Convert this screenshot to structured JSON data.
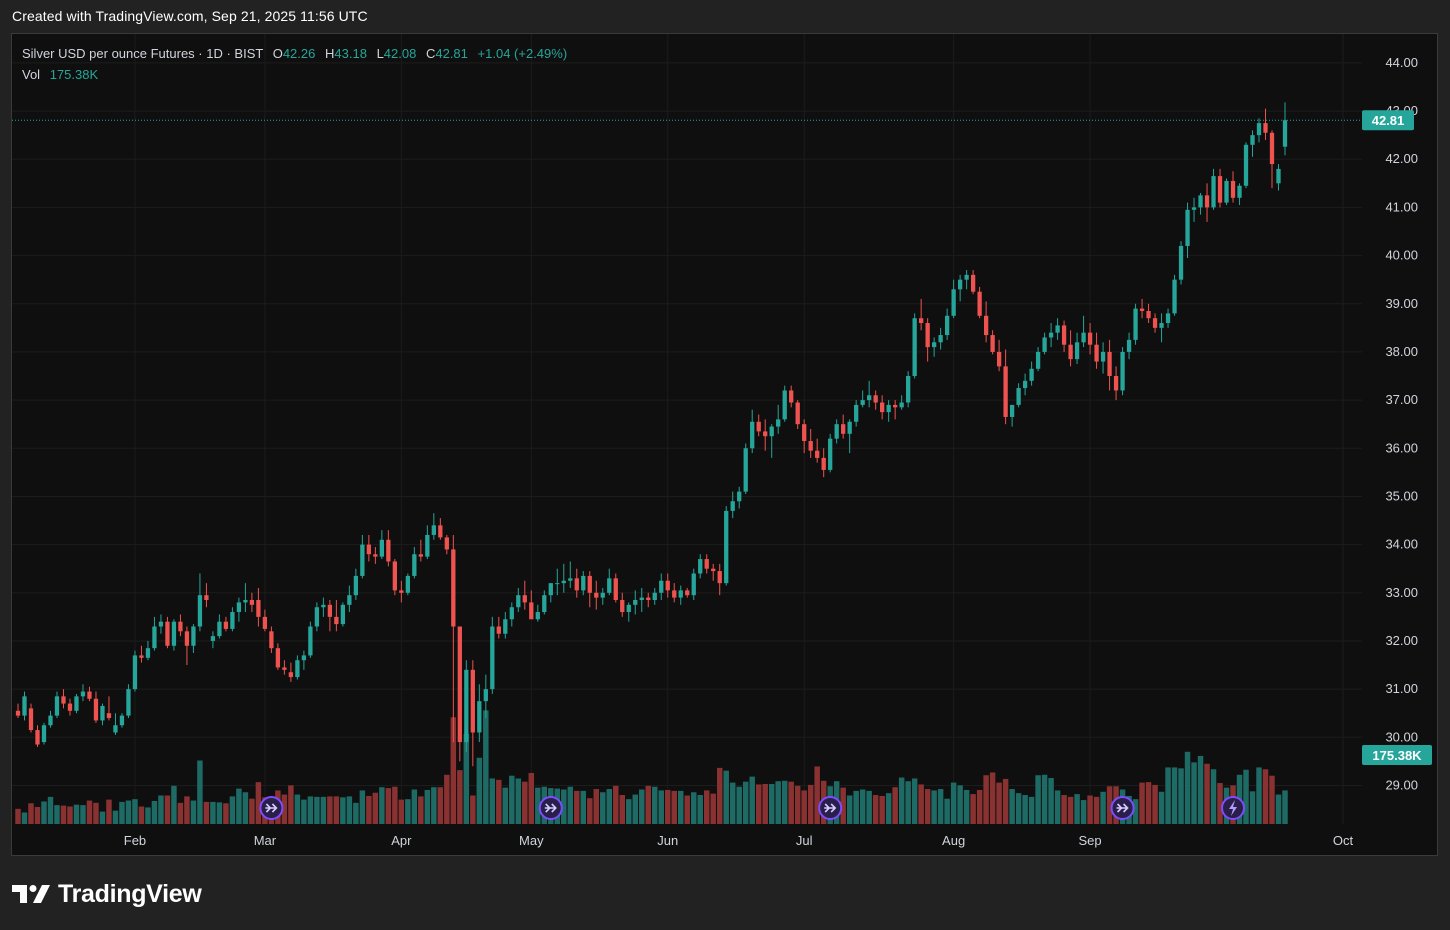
{
  "header": {
    "created_text": "Created with TradingView.com, Sep 21, 2025 11:56 UTC"
  },
  "legend": {
    "symbol": "Silver USD per ounce Futures · 1D · BIST",
    "open_label": "O",
    "open": "42.26",
    "high_label": "H",
    "high": "43.18",
    "low_label": "L",
    "low": "42.08",
    "close_label": "C",
    "close": "42.81",
    "change": "+1.04 (+2.49%)",
    "vol_label": "Vol",
    "vol": "175.38K"
  },
  "price_axis": {
    "ticks": [
      "44.00",
      "43.00",
      "42.00",
      "41.00",
      "40.00",
      "39.00",
      "38.00",
      "37.00",
      "36.00",
      "35.00",
      "34.00",
      "33.00",
      "32.00",
      "31.00",
      "30.00",
      "29.00"
    ],
    "last_price_label": "42.81",
    "last_volume_label": "175.38K"
  },
  "time_axis": {
    "ticks": [
      "Feb",
      "Mar",
      "Apr",
      "May",
      "Jun",
      "Jul",
      "Aug",
      "Sep",
      "Oct"
    ]
  },
  "brand": {
    "name": "TradingView"
  },
  "colors": {
    "up": "#26a69a",
    "down": "#ef5350",
    "vol_up": "#1e6b66",
    "vol_down": "#8a3232",
    "grid": "#1c1c1c",
    "background": "#0f0f0f",
    "marker": "#7c4dff"
  },
  "chart_data": {
    "type": "candlestick",
    "title": "Silver USD per ounce Futures · 1D · BIST",
    "ylim": [
      28.2,
      44.6
    ],
    "y_ticks": [
      29,
      30,
      31,
      32,
      33,
      34,
      35,
      36,
      37,
      38,
      39,
      40,
      41,
      42,
      43,
      44
    ],
    "x_ticks": [
      "Feb",
      "Mar",
      "Apr",
      "May",
      "Jun",
      "Jul",
      "Aug",
      "Sep",
      "Oct"
    ],
    "last_price": 42.81,
    "last_volume": "175.38K",
    "grid": true,
    "candles": [
      [
        30.55,
        30.7,
        30.4,
        30.45,
        "0.33"
      ],
      [
        30.45,
        30.95,
        30.35,
        30.85,
        "0.25"
      ],
      [
        30.6,
        30.7,
        30.1,
        30.15,
        "0.45"
      ],
      [
        30.15,
        30.25,
        29.8,
        29.85,
        "0.37"
      ],
      [
        29.9,
        30.3,
        29.85,
        30.25,
        "0.49"
      ],
      [
        30.25,
        30.55,
        30.2,
        30.45,
        "0.59"
      ],
      [
        30.45,
        30.95,
        30.4,
        30.85,
        "0.41"
      ],
      [
        30.85,
        31.0,
        30.6,
        30.7,
        "0.40"
      ],
      [
        30.7,
        30.8,
        30.45,
        30.55,
        "0.38"
      ],
      [
        30.55,
        30.9,
        30.5,
        30.85,
        "0.42"
      ],
      [
        30.85,
        31.1,
        30.75,
        30.95,
        "0.41"
      ],
      [
        30.95,
        31.05,
        30.75,
        30.8,
        "0.51"
      ],
      [
        30.8,
        30.95,
        30.3,
        30.35,
        "0.46"
      ],
      [
        30.35,
        30.7,
        30.25,
        30.65,
        "0.27"
      ],
      [
        30.5,
        30.85,
        30.35,
        30.4,
        "0.53"
      ],
      [
        30.1,
        30.5,
        30.05,
        30.25,
        "0.29"
      ],
      [
        30.25,
        30.5,
        30.2,
        30.45,
        "0.48"
      ],
      [
        30.45,
        31.1,
        30.4,
        31.0,
        "0.51"
      ],
      [
        31.0,
        31.8,
        30.95,
        31.7,
        "0.54"
      ],
      [
        31.7,
        31.9,
        31.55,
        31.65,
        "0.38"
      ],
      [
        31.65,
        32.0,
        31.6,
        31.85,
        "0.36"
      ],
      [
        31.85,
        32.5,
        31.8,
        32.3,
        "0.50"
      ],
      [
        32.3,
        32.55,
        32.15,
        32.4,
        "0.62"
      ],
      [
        32.4,
        32.5,
        31.85,
        31.9,
        "0.62"
      ],
      [
        31.9,
        32.45,
        31.8,
        32.4,
        "0.83"
      ],
      [
        32.4,
        32.55,
        32.1,
        32.2,
        "0.46"
      ],
      [
        32.2,
        32.3,
        31.5,
        31.9,
        "0.60"
      ],
      [
        31.9,
        32.35,
        31.75,
        32.3,
        "0.51"
      ],
      [
        32.3,
        33.4,
        32.2,
        32.95,
        "1.38"
      ],
      [
        32.95,
        33.2,
        32.7,
        32.85,
        "0.48"
      ],
      [
        32.0,
        32.2,
        31.85,
        32.1,
        "0.48"
      ],
      [
        32.1,
        32.55,
        32.05,
        32.4,
        "0.47"
      ],
      [
        32.4,
        32.5,
        32.2,
        32.25,
        "0.45"
      ],
      [
        32.25,
        32.7,
        32.2,
        32.6,
        "0.60"
      ],
      [
        32.6,
        32.9,
        32.4,
        32.8,
        "0.77"
      ],
      [
        32.8,
        33.2,
        32.6,
        32.85,
        "0.69"
      ],
      [
        32.85,
        33.0,
        32.6,
        32.75,
        "0.55"
      ],
      [
        32.85,
        33.1,
        32.3,
        32.5,
        "0.91"
      ],
      [
        32.5,
        32.65,
        32.2,
        32.25,
        "0.58"
      ],
      [
        32.2,
        32.3,
        31.75,
        31.85,
        "0.58"
      ],
      [
        31.85,
        31.95,
        31.4,
        31.45,
        "0.73"
      ],
      [
        31.45,
        31.6,
        31.3,
        31.4,
        "0.64"
      ],
      [
        31.35,
        31.55,
        31.15,
        31.25,
        "0.84"
      ],
      [
        31.25,
        31.7,
        31.2,
        31.6,
        "0.64"
      ],
      [
        31.6,
        31.8,
        31.4,
        31.7,
        "0.53"
      ],
      [
        31.7,
        32.4,
        31.65,
        32.3,
        "0.60"
      ],
      [
        32.3,
        32.8,
        32.2,
        32.7,
        "0.59"
      ],
      [
        32.7,
        32.9,
        32.5,
        32.75,
        "0.59"
      ],
      [
        32.75,
        32.85,
        32.2,
        32.5,
        "0.60"
      ],
      [
        32.5,
        32.85,
        32.2,
        32.35,
        "0.60"
      ],
      [
        32.35,
        32.8,
        32.3,
        32.75,
        "0.58"
      ],
      [
        32.75,
        33.15,
        32.6,
        32.95,
        "0.60"
      ],
      [
        32.95,
        33.5,
        32.85,
        33.35,
        "0.46"
      ],
      [
        33.35,
        34.2,
        33.3,
        34.0,
        "0.73"
      ],
      [
        34.0,
        34.2,
        33.65,
        33.8,
        "0.61"
      ],
      [
        33.8,
        33.95,
        33.6,
        33.75,
        "0.68"
      ],
      [
        33.75,
        34.3,
        33.7,
        34.1,
        "0.80"
      ],
      [
        34.1,
        34.3,
        33.55,
        33.65,
        "0.78"
      ],
      [
        33.65,
        33.7,
        32.95,
        33.05,
        "0.81"
      ],
      [
        33.05,
        33.25,
        32.8,
        33.0,
        "0.53"
      ],
      [
        33.0,
        33.4,
        32.95,
        33.35,
        "0.54"
      ],
      [
        33.35,
        33.95,
        33.3,
        33.8,
        "0.75"
      ],
      [
        33.8,
        34.1,
        33.65,
        33.75,
        "0.60"
      ],
      [
        33.75,
        34.4,
        33.7,
        34.2,
        "0.74"
      ],
      [
        34.2,
        34.65,
        34.1,
        34.4,
        "0.80"
      ],
      [
        34.4,
        34.55,
        34.1,
        34.15,
        "0.80"
      ],
      [
        34.15,
        34.2,
        33.8,
        33.9,
        "1.07"
      ],
      [
        33.9,
        34.2,
        29.9,
        32.3,
        "2.32"
      ],
      [
        32.3,
        32.3,
        29.5,
        29.9,
        "1.17"
      ],
      [
        29.9,
        31.6,
        29.7,
        31.4,
        "1.96"
      ],
      [
        31.4,
        31.6,
        29.4,
        30.1,
        "0.62"
      ],
      [
        30.1,
        31.1,
        29.9,
        30.75,
        "1.44"
      ],
      [
        30.75,
        31.3,
        30.4,
        31.0,
        "2.47"
      ],
      [
        31.0,
        32.5,
        30.9,
        32.3,
        "0.99"
      ],
      [
        32.3,
        32.5,
        32.05,
        32.15,
        "0.96"
      ],
      [
        32.15,
        32.6,
        32.05,
        32.45,
        "0.79"
      ],
      [
        32.45,
        32.8,
        32.3,
        32.7,
        "1.05"
      ],
      [
        32.7,
        33.1,
        32.6,
        32.95,
        "0.99"
      ],
      [
        32.95,
        33.25,
        32.65,
        32.8,
        "0.92"
      ],
      [
        32.8,
        33.05,
        32.55,
        32.45,
        "1.11"
      ],
      [
        32.45,
        32.75,
        32.4,
        32.6,
        "0.79"
      ],
      [
        32.6,
        33.05,
        32.55,
        32.95,
        "0.81"
      ],
      [
        32.95,
        33.2,
        32.8,
        33.2,
        "0.78"
      ],
      [
        33.2,
        33.5,
        32.95,
        33.2,
        "0.77"
      ],
      [
        33.2,
        33.6,
        33.0,
        33.25,
        "0.75"
      ],
      [
        33.25,
        33.65,
        33.1,
        33.3,
        "0.81"
      ],
      [
        33.3,
        33.5,
        32.9,
        33.05,
        "0.72"
      ],
      [
        33.05,
        33.45,
        32.95,
        33.35,
        "0.72"
      ],
      [
        33.35,
        33.45,
        32.7,
        33.0,
        "0.56"
      ],
      [
        33.0,
        33.25,
        32.65,
        32.9,
        "0.76"
      ],
      [
        32.9,
        33.1,
        32.75,
        33.0,
        "0.69"
      ],
      [
        33.0,
        33.5,
        32.95,
        33.3,
        "0.76"
      ],
      [
        33.3,
        33.4,
        32.8,
        32.85,
        "0.83"
      ],
      [
        32.85,
        33.0,
        32.5,
        32.6,
        "0.63"
      ],
      [
        32.6,
        32.8,
        32.4,
        32.75,
        "0.54"
      ],
      [
        32.75,
        33.05,
        32.55,
        32.85,
        "0.64"
      ],
      [
        32.85,
        33.1,
        32.6,
        32.9,
        "0.75"
      ],
      [
        32.9,
        33.0,
        32.7,
        32.85,
        "0.83"
      ],
      [
        32.85,
        33.1,
        32.75,
        33.0,
        "0.81"
      ],
      [
        33.0,
        33.4,
        32.85,
        33.25,
        "0.73"
      ],
      [
        33.25,
        33.4,
        32.9,
        33.05,
        "0.74"
      ],
      [
        33.05,
        33.2,
        32.8,
        32.9,
        "0.72"
      ],
      [
        32.9,
        33.15,
        32.75,
        33.05,
        "0.72"
      ],
      [
        33.05,
        33.1,
        32.9,
        32.95,
        "0.62"
      ],
      [
        32.95,
        33.5,
        32.85,
        33.4,
        "0.69"
      ],
      [
        33.4,
        33.8,
        33.3,
        33.7,
        "0.63"
      ],
      [
        33.7,
        33.8,
        33.4,
        33.5,
        "0.73"
      ],
      [
        33.5,
        33.6,
        33.25,
        33.45,
        "0.66"
      ],
      [
        33.45,
        33.6,
        32.95,
        33.2,
        "1.22"
      ],
      [
        33.2,
        34.8,
        33.15,
        34.7,
        "1.16"
      ],
      [
        34.7,
        35.1,
        34.55,
        34.9,
        "0.90"
      ],
      [
        34.9,
        35.2,
        34.75,
        35.1,
        "0.81"
      ],
      [
        35.1,
        36.1,
        35.05,
        36.0,
        "0.92"
      ],
      [
        36.0,
        36.8,
        35.9,
        36.55,
        "1.03"
      ],
      [
        36.55,
        36.7,
        36.25,
        36.35,
        "0.86"
      ],
      [
        36.35,
        36.6,
        35.95,
        36.25,
        "0.87"
      ],
      [
        36.25,
        36.5,
        35.8,
        36.45,
        "0.87"
      ],
      [
        36.45,
        36.9,
        36.3,
        36.6,
        "0.93"
      ],
      [
        36.6,
        37.3,
        36.55,
        37.2,
        "0.94"
      ],
      [
        37.2,
        37.3,
        36.85,
        36.95,
        "0.92"
      ],
      [
        36.95,
        37.0,
        36.4,
        36.5,
        "0.83"
      ],
      [
        36.5,
        36.6,
        35.9,
        36.15,
        "0.73"
      ],
      [
        36.15,
        36.4,
        35.8,
        35.95,
        "0.85"
      ],
      [
        35.95,
        36.2,
        35.7,
        35.8,
        "1.25"
      ],
      [
        35.8,
        36.0,
        35.4,
        35.55,
        "0.94"
      ],
      [
        35.55,
        36.3,
        35.5,
        36.2,
        "0.82"
      ],
      [
        36.2,
        36.6,
        36.1,
        36.5,
        "0.93"
      ],
      [
        36.5,
        36.7,
        36.2,
        36.3,
        "0.79"
      ],
      [
        36.3,
        36.6,
        35.9,
        36.55,
        "0.62"
      ],
      [
        36.55,
        37.0,
        36.45,
        36.9,
        "0.72"
      ],
      [
        36.9,
        37.2,
        36.85,
        37.0,
        "0.75"
      ],
      [
        37.0,
        37.4,
        36.85,
        37.1,
        "0.72"
      ],
      [
        37.1,
        37.2,
        36.8,
        36.95,
        "0.63"
      ],
      [
        36.95,
        37.1,
        36.6,
        36.75,
        "0.61"
      ],
      [
        36.75,
        37.0,
        36.55,
        36.9,
        "0.67"
      ],
      [
        36.9,
        37.0,
        36.6,
        36.85,
        "0.80"
      ],
      [
        36.85,
        37.1,
        36.8,
        36.95,
        "1.01"
      ],
      [
        36.95,
        37.6,
        36.85,
        37.5,
        "0.93"
      ],
      [
        37.5,
        38.8,
        37.45,
        38.7,
        "0.99"
      ],
      [
        38.7,
        39.1,
        38.45,
        38.6,
        "0.86"
      ],
      [
        38.6,
        38.7,
        37.8,
        38.1,
        "0.76"
      ],
      [
        38.1,
        38.3,
        37.9,
        38.2,
        "0.73"
      ],
      [
        38.2,
        38.5,
        38.05,
        38.35,
        "0.76"
      ],
      [
        38.35,
        38.9,
        38.25,
        38.75,
        "0.55"
      ],
      [
        38.75,
        39.5,
        38.7,
        39.3,
        "0.90"
      ],
      [
        39.3,
        39.6,
        39.05,
        39.5,
        "0.84"
      ],
      [
        39.5,
        39.7,
        39.3,
        39.6,
        "0.74"
      ],
      [
        39.6,
        39.7,
        39.2,
        39.25,
        "0.65"
      ],
      [
        39.25,
        39.35,
        38.7,
        38.75,
        "0.74"
      ],
      [
        38.75,
        39.05,
        38.2,
        38.35,
        "1.06"
      ],
      [
        38.35,
        38.45,
        37.95,
        38.0,
        "1.12"
      ],
      [
        38.0,
        38.25,
        37.6,
        37.7,
        "0.90"
      ],
      [
        37.7,
        38.05,
        36.5,
        36.65,
        "0.98"
      ],
      [
        36.65,
        36.9,
        36.45,
        36.9,
        "0.76"
      ],
      [
        36.9,
        37.35,
        36.85,
        37.25,
        "0.67"
      ],
      [
        37.25,
        37.55,
        37.1,
        37.4,
        "0.63"
      ],
      [
        37.4,
        37.8,
        37.3,
        37.65,
        "0.59"
      ],
      [
        37.65,
        38.1,
        37.6,
        38.0,
        "1.06"
      ],
      [
        38.0,
        38.4,
        37.95,
        38.3,
        "1.07"
      ],
      [
        38.3,
        38.6,
        38.1,
        38.4,
        "1.00"
      ],
      [
        38.4,
        38.7,
        38.25,
        38.55,
        "0.73"
      ],
      [
        38.55,
        38.65,
        38.0,
        38.15,
        "0.63"
      ],
      [
        38.15,
        38.45,
        37.7,
        37.85,
        "0.59"
      ],
      [
        37.85,
        38.4,
        37.75,
        38.2,
        "0.65"
      ],
      [
        38.2,
        38.75,
        38.1,
        38.4,
        "0.52"
      ],
      [
        38.4,
        38.6,
        37.95,
        38.15,
        "0.62"
      ],
      [
        38.15,
        38.4,
        37.65,
        37.8,
        "0.59"
      ],
      [
        37.8,
        38.2,
        37.55,
        38.0,
        "0.70"
      ],
      [
        38.0,
        38.25,
        37.2,
        37.5,
        "0.82"
      ],
      [
        37.5,
        37.7,
        37.0,
        37.2,
        "0.82"
      ],
      [
        37.2,
        38.1,
        37.1,
        38.0,
        "0.75"
      ],
      [
        38.0,
        38.4,
        37.85,
        38.25,
        "0.61"
      ],
      [
        38.25,
        39.0,
        38.15,
        38.9,
        "0.54"
      ],
      [
        38.9,
        39.1,
        38.7,
        38.85,
        "0.90"
      ],
      [
        38.85,
        39.0,
        38.6,
        38.7,
        "0.91"
      ],
      [
        38.7,
        38.8,
        38.4,
        38.5,
        "0.85"
      ],
      [
        38.5,
        38.8,
        38.2,
        38.6,
        "0.70"
      ],
      [
        38.6,
        38.9,
        38.5,
        38.8,
        "1.23"
      ],
      [
        38.8,
        39.6,
        38.75,
        39.5,
        "1.23"
      ],
      [
        39.5,
        40.3,
        39.4,
        40.2,
        "1.21"
      ],
      [
        40.2,
        41.1,
        39.95,
        40.95,
        "1.57"
      ],
      [
        40.95,
        41.2,
        40.7,
        41.0,
        "1.34"
      ],
      [
        41.0,
        41.3,
        40.85,
        41.25,
        "1.48"
      ],
      [
        41.25,
        41.5,
        40.7,
        41.0,
        "1.31"
      ],
      [
        41.0,
        41.8,
        40.95,
        41.65,
        "1.19"
      ],
      [
        41.65,
        41.8,
        41.0,
        41.1,
        "0.89"
      ],
      [
        41.1,
        41.6,
        41.05,
        41.55,
        "0.79"
      ],
      [
        41.55,
        41.75,
        41.1,
        41.2,
        "0.84"
      ],
      [
        41.2,
        41.5,
        41.05,
        41.45,
        "1.07"
      ],
      [
        41.45,
        42.35,
        41.4,
        42.3,
        "1.18"
      ],
      [
        42.3,
        42.6,
        42.05,
        42.5,
        "0.71"
      ],
      [
        42.5,
        42.85,
        42.35,
        42.75,
        "1.23"
      ],
      [
        42.75,
        43.05,
        42.4,
        42.55,
        "1.19"
      ],
      [
        42.55,
        42.6,
        41.4,
        41.9,
        "1.05"
      ],
      [
        41.5,
        41.9,
        41.35,
        41.8,
        "0.64"
      ],
      [
        42.26,
        43.18,
        42.08,
        42.81,
        "0.73"
      ]
    ]
  }
}
